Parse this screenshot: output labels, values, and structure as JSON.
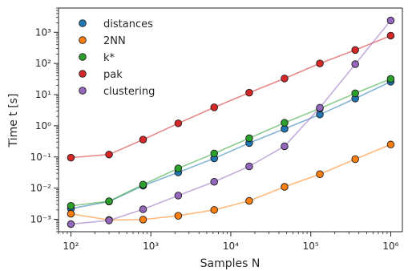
{
  "chart_data": {
    "type": "scatter",
    "xlabel": "Samples N",
    "ylabel": "Time t [s]",
    "xscale": "log",
    "yscale": "log",
    "xlim": [
      70,
      1400000
    ],
    "ylim": [
      0.0004,
      6000
    ],
    "x_ticks": [
      {
        "value": 100,
        "label": "10²"
      },
      {
        "value": 1000,
        "label": "10³"
      },
      {
        "value": 10000,
        "label": "10⁴"
      },
      {
        "value": 100000,
        "label": "10⁵"
      },
      {
        "value": 1000000,
        "label": "10⁶"
      }
    ],
    "y_ticks": [
      {
        "value": 0.001,
        "label": "10⁻³"
      },
      {
        "value": 0.01,
        "label": "10⁻²"
      },
      {
        "value": 0.1,
        "label": "10⁻¹"
      },
      {
        "value": 1,
        "label": "10⁰"
      },
      {
        "value": 10,
        "label": "10¹"
      },
      {
        "value": 100,
        "label": "10²"
      },
      {
        "value": 1000,
        "label": "10³"
      }
    ],
    "grid": false,
    "legend_position": "top-left",
    "x": [
      100,
      300,
      800,
      2200,
      6200,
      17000,
      47000,
      130000,
      360000,
      1000000
    ],
    "series": [
      {
        "name": "distances",
        "color": "#1f77b4",
        "values": [
          0.0022,
          0.0037,
          0.012,
          0.032,
          0.09,
          0.28,
          0.8,
          2.3,
          7.5,
          26
        ]
      },
      {
        "name": "2NN",
        "color": "#ff7f0e",
        "values": [
          0.0015,
          0.00095,
          0.00098,
          0.0013,
          0.002,
          0.0039,
          0.011,
          0.028,
          0.085,
          0.25
        ]
      },
      {
        "name": "k*",
        "color": "#2ca02c",
        "values": [
          0.0027,
          0.0038,
          0.013,
          0.043,
          0.13,
          0.4,
          1.25,
          3.6,
          11,
          32
        ]
      },
      {
        "name": "pak",
        "color": "#d62728",
        "values": [
          0.095,
          0.12,
          0.36,
          1.2,
          3.9,
          11.5,
          33,
          100,
          270,
          780
        ]
      },
      {
        "name": "clustering",
        "color": "#9467bd",
        "values": [
          0.0007,
          0.00092,
          0.0021,
          0.0058,
          0.016,
          0.05,
          0.22,
          3.8,
          95,
          2400
        ]
      }
    ]
  }
}
